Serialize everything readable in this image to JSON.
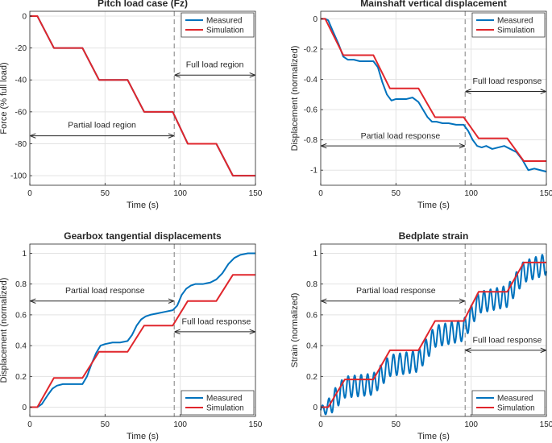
{
  "figure": {
    "width": 685,
    "height": 550
  },
  "legend_labels": {
    "measured": "Measured",
    "simulation": "Simulation"
  },
  "colors": {
    "measured": "#0072BD",
    "simulation": "#E0262C",
    "axis": "#262626",
    "grid": "#E3E3E3",
    "divider": "#7f7f7f",
    "arrow": "#262626"
  },
  "chart_data": [
    {
      "type": "line",
      "title": "Pitch load case (Fz)",
      "xlabel": "Time (s)",
      "ylabel": "Force (% full load)",
      "xlim": [
        0,
        150
      ],
      "ylim": [
        -106,
        3
      ],
      "xticks": [
        0,
        50,
        100,
        150
      ],
      "yticks": [
        0,
        -20,
        -40,
        -60,
        -80,
        -100
      ],
      "legend_position": "top-right",
      "divider_x": 96,
      "annotations": [
        {
          "text": "Full load region",
          "y": -37,
          "x0": 96,
          "x1": 150,
          "text_x": 123,
          "text_y": -32
        },
        {
          "text": "Partial load region",
          "y": -75,
          "x0": 0,
          "x1": 96,
          "text_x": 48,
          "text_y": -70
        }
      ],
      "series": [
        {
          "name": "Measured",
          "color": "#0072BD",
          "x": [
            0,
            5,
            16,
            35,
            46,
            65,
            76,
            95,
            105,
            124,
            135,
            150
          ],
          "y": [
            0,
            0,
            -20,
            -20,
            -40,
            -40,
            -60,
            -60,
            -80,
            -80,
            -100,
            -100
          ]
        },
        {
          "name": "Simulation",
          "color": "#E0262C",
          "x": [
            0,
            5,
            16,
            35,
            46,
            65,
            76,
            95,
            105,
            124,
            135,
            150
          ],
          "y": [
            0,
            0,
            -20,
            -20,
            -40,
            -40,
            -60,
            -60,
            -80,
            -80,
            -100,
            -100
          ]
        }
      ]
    },
    {
      "type": "line",
      "title": "Mainshaft vertical displacement",
      "xlabel": "Time (s)",
      "ylabel": "Displacement (normalized)",
      "xlim": [
        0,
        150
      ],
      "ylim": [
        -1.1,
        0.05
      ],
      "xticks": [
        0,
        50,
        100,
        150
      ],
      "yticks": [
        0,
        -0.2,
        -0.4,
        -0.6,
        -0.8,
        -1
      ],
      "tick_labels_y": [
        "0",
        "-0.2",
        "-0.4",
        "-0.6",
        "-0.8",
        "-1"
      ],
      "legend_position": "top-right",
      "divider_x": 96,
      "annotations": [
        {
          "text": "Full load response",
          "y": -0.48,
          "x0": 96,
          "x1": 150,
          "text_x": 124,
          "text_y": -0.43
        },
        {
          "text": "Partial load response",
          "y": -0.84,
          "x0": 0,
          "x1": 96,
          "text_x": 53,
          "text_y": -0.79
        }
      ],
      "series": [
        {
          "name": "Measured",
          "color": "#0072BD",
          "x": [
            0,
            3,
            5,
            8,
            12,
            15,
            18,
            22,
            26,
            30,
            35,
            38,
            41,
            44,
            47,
            50,
            53,
            57,
            61,
            65,
            68,
            71,
            74,
            77,
            81,
            85,
            90,
            95,
            98,
            101,
            104,
            107,
            110,
            114,
            118,
            122,
            126,
            130,
            134,
            138,
            142,
            146,
            150
          ],
          "y": [
            0,
            0,
            -0.01,
            -0.08,
            -0.17,
            -0.25,
            -0.27,
            -0.27,
            -0.28,
            -0.28,
            -0.28,
            -0.32,
            -0.42,
            -0.5,
            -0.54,
            -0.53,
            -0.53,
            -0.53,
            -0.52,
            -0.55,
            -0.6,
            -0.65,
            -0.68,
            -0.68,
            -0.69,
            -0.69,
            -0.7,
            -0.7,
            -0.74,
            -0.8,
            -0.84,
            -0.85,
            -0.84,
            -0.86,
            -0.85,
            -0.84,
            -0.86,
            -0.88,
            -0.93,
            -1.0,
            -0.99,
            -1.0,
            -1.01
          ]
        },
        {
          "name": "Simulation",
          "color": "#E0262C",
          "x": [
            0,
            3,
            15,
            35,
            46,
            65,
            76,
            95,
            105,
            124,
            135,
            150
          ],
          "y": [
            0,
            0,
            -0.24,
            -0.24,
            -0.46,
            -0.46,
            -0.65,
            -0.65,
            -0.79,
            -0.79,
            -0.94,
            -0.94
          ]
        }
      ]
    },
    {
      "type": "line",
      "title": "Gearbox tangential displacements",
      "xlabel": "Time (s)",
      "ylabel": "Displacement (normalized)",
      "xlim": [
        0,
        150
      ],
      "ylim": [
        -0.06,
        1.06
      ],
      "xticks": [
        0,
        50,
        100,
        150
      ],
      "yticks": [
        0,
        0.2,
        0.4,
        0.6,
        0.8,
        1
      ],
      "tick_labels_y": [
        "0",
        "0.2",
        "0.4",
        "0.6",
        "0.8",
        "1"
      ],
      "legend_position": "bottom-right",
      "divider_x": 96,
      "annotations": [
        {
          "text": "Partial load response",
          "y": 0.69,
          "x0": 0,
          "x1": 96,
          "text_x": 50,
          "text_y": 0.74
        },
        {
          "text": "Full load response",
          "y": 0.49,
          "x0": 96,
          "x1": 150,
          "text_x": 124,
          "text_y": 0.54
        }
      ],
      "series": [
        {
          "name": "Measured",
          "color": "#0072BD",
          "x": [
            0,
            5,
            8,
            12,
            15,
            18,
            22,
            26,
            30,
            35,
            38,
            41,
            44,
            47,
            50,
            55,
            60,
            65,
            68,
            71,
            74,
            77,
            80,
            85,
            90,
            95,
            98,
            101,
            104,
            107,
            110,
            115,
            120,
            124,
            128,
            132,
            136,
            140,
            145,
            150
          ],
          "y": [
            0,
            0,
            0.02,
            0.08,
            0.12,
            0.14,
            0.15,
            0.15,
            0.15,
            0.15,
            0.2,
            0.28,
            0.35,
            0.4,
            0.41,
            0.42,
            0.42,
            0.43,
            0.47,
            0.53,
            0.57,
            0.59,
            0.6,
            0.61,
            0.62,
            0.63,
            0.66,
            0.73,
            0.77,
            0.79,
            0.8,
            0.8,
            0.81,
            0.83,
            0.87,
            0.93,
            0.97,
            0.99,
            1.0,
            1.0
          ]
        },
        {
          "name": "Simulation",
          "color": "#E0262C",
          "x": [
            0,
            5,
            16,
            35,
            46,
            65,
            76,
            95,
            105,
            124,
            135,
            150
          ],
          "y": [
            0,
            0,
            0.19,
            0.19,
            0.36,
            0.36,
            0.53,
            0.53,
            0.69,
            0.69,
            0.86,
            0.86
          ]
        }
      ]
    },
    {
      "type": "line",
      "title": "Bedplate strain",
      "xlabel": "Time (s)",
      "ylabel": "Strain (normalized)",
      "xlim": [
        0,
        150
      ],
      "ylim": [
        -0.06,
        1.06
      ],
      "xticks": [
        0,
        50,
        100,
        150
      ],
      "yticks": [
        0,
        0.2,
        0.4,
        0.6,
        0.8,
        1
      ],
      "tick_labels_y": [
        "0",
        "0.2",
        "0.4",
        "0.6",
        "0.8",
        "1"
      ],
      "legend_position": "bottom-right",
      "divider_x": 96,
      "annotations": [
        {
          "text": "Partial load response",
          "y": 0.69,
          "x0": 0,
          "x1": 96,
          "text_x": 50,
          "text_y": 0.74
        },
        {
          "text": "Full load response",
          "y": 0.37,
          "x0": 96,
          "x1": 150,
          "text_x": 124,
          "text_y": 0.42
        }
      ],
      "series": [
        {
          "name": "Measured",
          "color": "#0072BD",
          "oscillation": {
            "period_s": 4.3,
            "amplitude": 0.07
          },
          "x": [
            0,
            5,
            16,
            35,
            46,
            65,
            76,
            95,
            105,
            124,
            135,
            150
          ],
          "y": [
            -0.02,
            0.0,
            0.13,
            0.15,
            0.27,
            0.3,
            0.46,
            0.5,
            0.68,
            0.72,
            0.88,
            0.93
          ]
        },
        {
          "name": "Simulation",
          "color": "#E0262C",
          "x": [
            0,
            5,
            16,
            35,
            46,
            65,
            76,
            95,
            105,
            124,
            135,
            150
          ],
          "y": [
            0,
            0,
            0.18,
            0.18,
            0.37,
            0.37,
            0.56,
            0.56,
            0.75,
            0.75,
            0.94,
            0.94
          ]
        }
      ]
    }
  ]
}
